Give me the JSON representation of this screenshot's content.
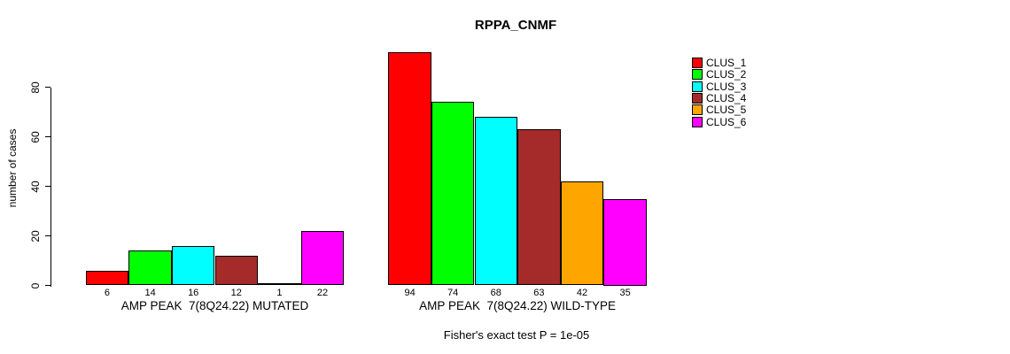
{
  "chart_data": {
    "type": "bar",
    "title": "RPPA_CNMF",
    "ylabel": "number of cases",
    "ylim": [
      0,
      80
    ],
    "yticks": [
      0,
      20,
      40,
      60,
      80
    ],
    "grid": false,
    "legend_position": "top-right-outside",
    "bar_border_color": "#000000",
    "clusters": [
      {
        "name": "CLUS_1",
        "color": "#FF0000"
      },
      {
        "name": "CLUS_2",
        "color": "#00FF00"
      },
      {
        "name": "CLUS_3",
        "color": "#00FFFF"
      },
      {
        "name": "CLUS_4",
        "color": "#A52A2A"
      },
      {
        "name": "CLUS_5",
        "color": "#FFA500"
      },
      {
        "name": "CLUS_6",
        "color": "#FF00FF"
      }
    ],
    "groups": [
      {
        "label": "AMP PEAK  7(8Q24.22) MUTATED",
        "values": [
          6,
          14,
          16,
          12,
          1,
          22
        ]
      },
      {
        "label": "AMP PEAK  7(8Q24.22) WILD-TYPE",
        "values": [
          94,
          74,
          68,
          63,
          42,
          35
        ]
      }
    ],
    "annotation": "Fisher's exact test P = 1e-05"
  }
}
